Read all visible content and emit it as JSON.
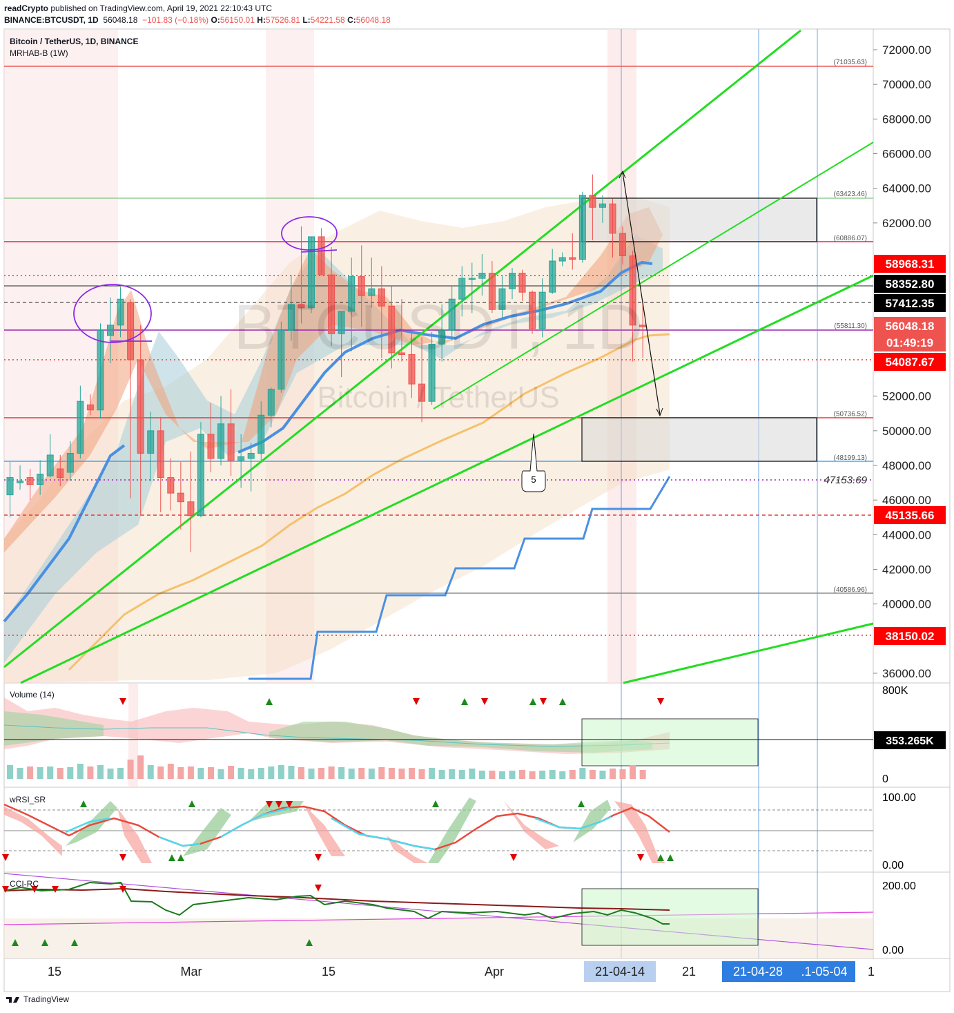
{
  "header": {
    "author": "readCrypto",
    "published_text": " published on TradingView.com, April 19, 2021 22:10:43 UTC",
    "symbol": "BINANCE:BTCUSDT, 1D",
    "last": "56048.18",
    "change": "−101.83 (−0.18%)",
    "o_label": "O:",
    "o": "56150.01",
    "h_label": "H:",
    "h": "57526.81",
    "l_label": "L:",
    "l": "54221.58",
    "c_label": "C:",
    "c": "56048.18"
  },
  "legend": {
    "title": "Bitcoin / TetherUS, 1D, BINANCE",
    "indicator": "MRHAB-B (1W)",
    "watermark_symbol": "BTCUSDT, 1D",
    "watermark_name": "Bitcoin / TetherUS"
  },
  "panes": {
    "volume": "Volume (14)",
    "wrsi": "wRSI_SR",
    "cci": "CCI-RC"
  },
  "footer": {
    "brand": "TradingView"
  },
  "colors": {
    "up": "#26a69a",
    "down": "#ef5350",
    "trend": "#22dd22",
    "accent_blue": "#4a90e2",
    "purple": "#9c27b0"
  },
  "chart_data": {
    "type": "candlestick",
    "y_ticks": [
      "72000.00",
      "70000.00",
      "68000.00",
      "66000.00",
      "64000.00",
      "62000.00",
      "52000.00",
      "50000.00",
      "48000.00",
      "46000.00",
      "44000.00",
      "42000.00",
      "40000.00",
      "36000.00"
    ],
    "ylim": [
      35500,
      73500
    ],
    "x_ticks": [
      "15",
      "Mar",
      "15",
      "Apr",
      "21"
    ],
    "x_highlight": [
      "21-04-14",
      "21-04-28",
      ".1-05-04",
      "1"
    ],
    "price_badges": [
      {
        "text": "58968.31",
        "bg": "#ff0000"
      },
      {
        "text": "58352.80",
        "bg": "#000000"
      },
      {
        "text": "57412.35",
        "bg": "#000000"
      },
      {
        "text": "56048.18",
        "bg": "#ef5350"
      },
      {
        "text": "01:49:19",
        "bg": "#ef5350"
      },
      {
        "text": "54087.67",
        "bg": "#ff0000"
      },
      {
        "text": "45135.66",
        "bg": "#ff0000"
      },
      {
        "text": "38150.02",
        "bg": "#ff0000"
      }
    ],
    "level_labels": [
      "(71035.63)",
      "(63423.46)",
      "(60886.07)",
      "(55811.30)",
      "(50736.52)",
      "(48199.13)",
      "(40586.96)"
    ],
    "annotation_value": "47153.69",
    "callout": "5",
    "candles_ohlc": [
      [
        46300,
        48200,
        45000,
        47300
      ],
      [
        47000,
        48000,
        46600,
        47100
      ],
      [
        47300,
        47800,
        46000,
        46900
      ],
      [
        46900,
        48300,
        46300,
        47500
      ],
      [
        47400,
        49800,
        47300,
        48600
      ],
      [
        47800,
        48600,
        46800,
        47300
      ],
      [
        47600,
        49400,
        47100,
        48700
      ],
      [
        48700,
        52600,
        48400,
        51700
      ],
      [
        51500,
        52100,
        50900,
        51200
      ],
      [
        51200,
        56200,
        50700,
        55800
      ],
      [
        55500,
        57700,
        53900,
        56100
      ],
      [
        56100,
        58300,
        55400,
        57600
      ],
      [
        57400,
        57600,
        46100,
        54100
      ],
      [
        54100,
        56100,
        45100,
        48700
      ],
      [
        48700,
        51100,
        47100,
        50000
      ],
      [
        50000,
        50800,
        45300,
        47300
      ],
      [
        47300,
        48400,
        45400,
        46400
      ],
      [
        46400,
        48200,
        44300,
        45900
      ],
      [
        45900,
        48800,
        43000,
        45100
      ],
      [
        45100,
        50500,
        45000,
        49800
      ],
      [
        49800,
        51600,
        47600,
        48400
      ],
      [
        48400,
        52000,
        48000,
        50400
      ],
      [
        50400,
        52400,
        47400,
        48300
      ],
      [
        48300,
        49800,
        46700,
        48500
      ],
      [
        48400,
        49300,
        46500,
        48700
      ],
      [
        48700,
        51700,
        48300,
        50900
      ],
      [
        50900,
        52500,
        50200,
        52400
      ],
      [
        52400,
        56300,
        52200,
        55800
      ],
      [
        55800,
        59000,
        55200,
        57300
      ],
      [
        57300,
        61800,
        56200,
        57100
      ],
      [
        57100,
        61200,
        56800,
        61200
      ],
      [
        61200,
        61700,
        59100,
        59000
      ],
      [
        59000,
        60600,
        54900,
        55600
      ],
      [
        55600,
        56900,
        53100,
        56900
      ],
      [
        56900,
        60000,
        54600,
        58900
      ],
      [
        58900,
        60700,
        56000,
        57800
      ],
      [
        57800,
        60000,
        57100,
        58200
      ],
      [
        58200,
        59500,
        54200,
        57200
      ],
      [
        57200,
        58400,
        53600,
        54500
      ],
      [
        54500,
        57600,
        54000,
        54400
      ],
      [
        54400,
        55800,
        51900,
        52700
      ],
      [
        52700,
        55400,
        50500,
        51700
      ],
      [
        51700,
        55700,
        51500,
        55000
      ],
      [
        55000,
        57300,
        54000,
        55800
      ],
      [
        55800,
        58400,
        55200,
        57600
      ],
      [
        57600,
        59500,
        56600,
        58800
      ],
      [
        58800,
        59700,
        56800,
        58800
      ],
      [
        58800,
        60200,
        57800,
        59100
      ],
      [
        59100,
        59800,
        56800,
        57000
      ],
      [
        57000,
        59000,
        56500,
        58200
      ],
      [
        58200,
        59400,
        57600,
        59100
      ],
      [
        59100,
        59300,
        57500,
        58000
      ],
      [
        58000,
        58100,
        55600,
        55900
      ],
      [
        55900,
        58800,
        55400,
        58000
      ],
      [
        58000,
        60500,
        57900,
        59800
      ],
      [
        59800,
        60300,
        59500,
        60000
      ],
      [
        60000,
        61400,
        59300,
        59900
      ],
      [
        59900,
        63800,
        59700,
        63600
      ],
      [
        63600,
        64800,
        61000,
        62900
      ],
      [
        62900,
        63600,
        62000,
        63100
      ],
      [
        63100,
        63400,
        60000,
        61400
      ],
      [
        61400,
        61800,
        59600,
        60100
      ],
      [
        60100,
        60400,
        54000,
        56100
      ],
      [
        56100,
        57500,
        54200,
        56000
      ]
    ]
  }
}
